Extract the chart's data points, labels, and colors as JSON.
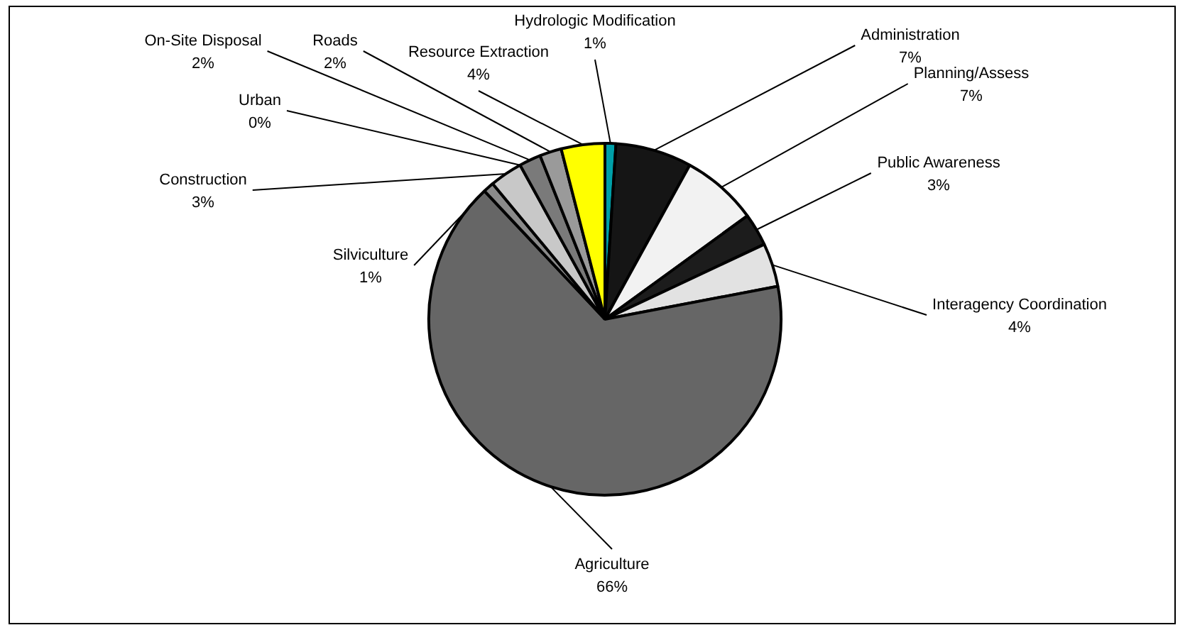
{
  "chart_data": {
    "type": "pie",
    "categories": [
      "Hydrologic Modification",
      "Administration",
      "Planning/Assess",
      "Public Awareness",
      "Interagency Coordination",
      "Agriculture",
      "Silviculture",
      "Construction",
      "Urban",
      "On-Site Disposal",
      "Roads",
      "Resource Extraction"
    ],
    "values": [
      1,
      7,
      7,
      3,
      4,
      66,
      1,
      3,
      0,
      2,
      2,
      4
    ],
    "value_labels": [
      "1%",
      "7%",
      "7%",
      "3%",
      "4%",
      "66%",
      "1%",
      "3%",
      "0%",
      "2%",
      "2%",
      "4%"
    ],
    "colors": [
      "#00a0a8",
      "#151515",
      "#f2f2f2",
      "#1c1c1c",
      "#e2e2e2",
      "#666666",
      "#8a8a8a",
      "#c8c8c8",
      "#555555",
      "#7a7a7a",
      "#9a9a9a",
      "#ffff00"
    ],
    "legend": false
  }
}
